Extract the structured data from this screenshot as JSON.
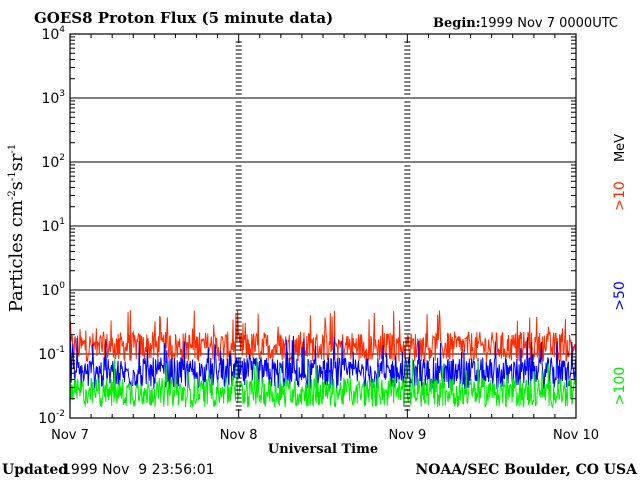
{
  "header": {
    "title": "GOES8 Proton Flux (5 minute data)",
    "begin_label": "Begin:",
    "begin_value": "1999 Nov 7 0000UTC"
  },
  "footer": {
    "updated_label": "Updated",
    "updated_value": "1999 Nov  9 23:56:01",
    "source": "NOAA/SEC Boulder, CO USA"
  },
  "colors": {
    "gt10": "#ff2a00",
    "gt50": "#0000ff",
    "gt100": "#00ee00",
    "axes": "#000000"
  },
  "chart_data": {
    "type": "line",
    "title": "GOES8 Proton Flux (5 minute data)",
    "xlabel": "Universal Time",
    "ylabel_parts": [
      "Particles cm",
      "-2",
      "s",
      "-1",
      "sr",
      "-1"
    ],
    "y_scale": "log",
    "ylim": [
      0.01,
      10000
    ],
    "y_ticks": [
      {
        "base": "10",
        "exp": "-2"
      },
      {
        "base": "10",
        "exp": "-1"
      },
      {
        "base": "10",
        "exp": "0"
      },
      {
        "base": "10",
        "exp": "1"
      },
      {
        "base": "10",
        "exp": "2"
      },
      {
        "base": "10",
        "exp": "3"
      },
      {
        "base": "10",
        "exp": "4"
      }
    ],
    "x_range": [
      "1999-11-07",
      "1999-11-10"
    ],
    "x_ticks": [
      "Nov 7",
      "Nov 8",
      "Nov 9",
      "Nov 10"
    ],
    "sample_interval_minutes": 5,
    "grid": true,
    "legend": {
      "position": "right",
      "entries": [
        ">100",
        ">50",
        ">10",
        "MeV"
      ]
    },
    "series": [
      {
        "name": ">10 MeV",
        "color": "#ff2a00",
        "typical": 0.13,
        "min": 0.07,
        "max": 0.5
      },
      {
        "name": ">50 MeV",
        "color": "#0000ff",
        "typical": 0.05,
        "min": 0.025,
        "max": 0.2
      },
      {
        "name": ">100 MeV",
        "color": "#00ee00",
        "typical": 0.025,
        "min": 0.013,
        "max": 0.09
      }
    ]
  }
}
